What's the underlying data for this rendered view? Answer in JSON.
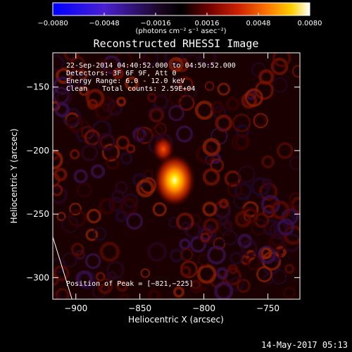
{
  "chart_data": {
    "type": "heatmap",
    "title": "Reconstructed RHESSI Image",
    "xlabel": "Heliocentric X (arcsec)",
    "ylabel": "Heliocentric Y (arcsec)",
    "xlim": [
      -918,
      -725
    ],
    "ylim": [
      -317,
      -123
    ],
    "x_ticks": [
      -900,
      -850,
      -800,
      -750
    ],
    "x_tick_labels": [
      "−900",
      "−850",
      "−800",
      "−750"
    ],
    "y_ticks": [
      -150,
      -200,
      -250,
      -300
    ],
    "y_tick_labels": [
      "−150",
      "−200",
      "−250",
      "−300"
    ],
    "colorbar": {
      "range": [
        -0.008,
        0.008
      ],
      "ticks": [
        -0.008,
        -0.0048,
        -0.0016,
        0.0016,
        0.0048,
        0.008
      ],
      "tick_labels": [
        "−0.0080",
        "−0.0048",
        "−0.0016",
        "0.0016",
        "0.0048",
        "0.0080"
      ],
      "unit_label": "(photons cm⁻² s⁻¹ asec⁻²)",
      "colors": [
        "#0000ff",
        "#5a1fc0",
        "#2a0a2a",
        "#000000",
        "#6a0000",
        "#cc2000",
        "#ff7a00",
        "#ffd000",
        "#ffffff"
      ]
    },
    "annotations": {
      "time_range": "22-Sep-2014 04:40:52.000 to 04:50:52.000",
      "detectors": "Detectors: 3F 6F 9F, Att 0",
      "energy": "Energy Range: 6.0 - 12.0 keV",
      "clean": "Clean",
      "total_counts": "Total counts: 2.59E+04",
      "peak": "Position of Peak = [−821,−225]"
    },
    "peak_position": [
      -821,
      -225
    ],
    "limb_line": [
      [
        -918,
        -268
      ],
      [
        -903,
        -317
      ]
    ]
  },
  "footer": {
    "timestamp": "14-May-2017 05:13"
  }
}
